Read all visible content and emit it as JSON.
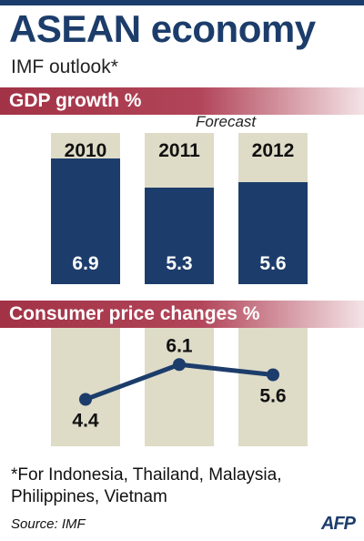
{
  "header": {
    "title": "ASEAN economy",
    "subtitle": "IMF outlook*"
  },
  "colors": {
    "navy": "#1c3d6b",
    "section_bar": "#a23246",
    "column_background": "#dedbc7"
  },
  "chart_data": [
    {
      "type": "bar",
      "title": "GDP growth %",
      "annotation": "Forecast",
      "categories": [
        "2010",
        "2011",
        "2012"
      ],
      "values": [
        6.9,
        5.3,
        5.6
      ],
      "value_labels": [
        "6.9",
        "5.3",
        "5.6"
      ],
      "ylim": [
        0,
        8
      ],
      "grid": false
    },
    {
      "type": "line",
      "title": "Consumer price changes %",
      "categories": [
        "2010",
        "2011",
        "2012"
      ],
      "values": [
        4.4,
        6.1,
        5.6
      ],
      "value_labels": [
        "4.4",
        "6.1",
        "5.6"
      ],
      "ylim": [
        3,
        7
      ],
      "grid": false
    }
  ],
  "footer": {
    "footnote": "*For Indonesia, Thailand, Malaysia, Philippines, Vietnam",
    "source": "Source: IMF",
    "logo": "AFP"
  }
}
